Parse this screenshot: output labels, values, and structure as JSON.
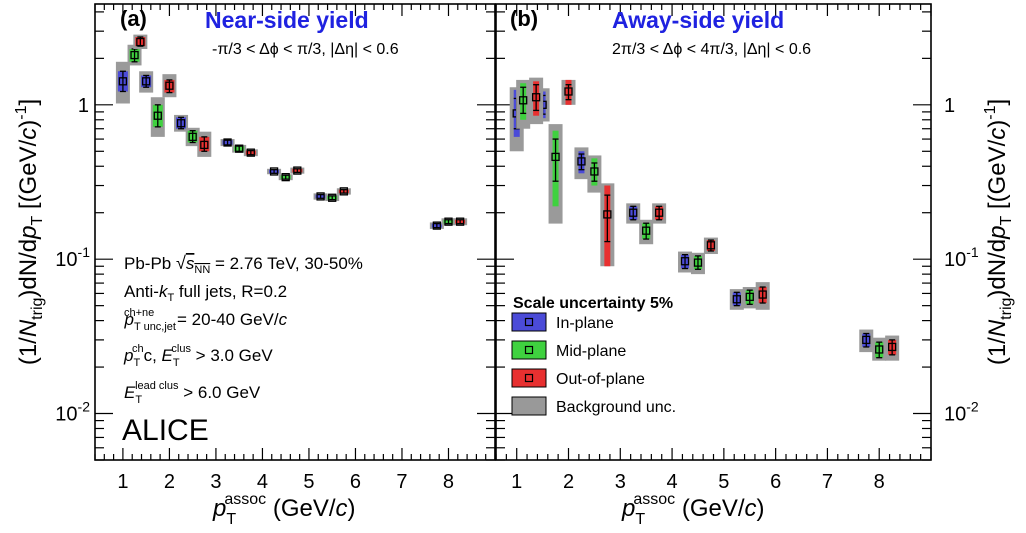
{
  "chart_data": [
    {
      "type": "scatter",
      "panel_label": "(a)",
      "title": "Near-side yield",
      "subtitle": "-π/3 < Δφ < π/3, |Δη| < 0.6",
      "xlabel": "p_T^assoc (GeV/c)",
      "ylabel": "(1/N_trig)dN/dp_T [(GeV/c)^-1]",
      "xlim": [
        0.4,
        9.0
      ],
      "ylim": [
        0.005,
        4.5
      ],
      "yscale": "log",
      "x_ticks": [
        "1",
        "2",
        "3",
        "4",
        "5",
        "6",
        "7",
        "8"
      ],
      "y_ticks": [
        "10^-2",
        "10^-1",
        "1"
      ],
      "annotations": [
        "Pb-Pb √s_NN = 2.76 TeV, 30-50%",
        "Anti-k_T full jets, R=0.2",
        "p_T unc,jet^ch+ne = 20-40 GeV/c",
        "p_T^ch c, E_T^clus > 3.0 GeV",
        "E_T^lead clus > 6.0 GeV",
        "ALICE"
      ],
      "series": [
        {
          "name": "In-plane",
          "color": "#4b4bd8",
          "points": [
            {
              "x": 1.0,
              "y": 1.42,
              "err": [
                1.22,
                1.65
              ],
              "bkg": [
                1.02,
                1.9
              ]
            },
            {
              "x": 1.5,
              "y": 1.42,
              "err": [
                1.3,
                1.55
              ],
              "bkg": [
                1.2,
                1.65
              ]
            },
            {
              "x": 2.25,
              "y": 0.76,
              "err": [
                0.7,
                0.83
              ],
              "bkg": [
                0.67,
                0.86
              ]
            },
            {
              "x": 3.25,
              "y": 0.57,
              "err": [
                0.55,
                0.59
              ],
              "bkg": [
                0.54,
                0.6
              ]
            },
            {
              "x": 4.25,
              "y": 0.37,
              "err": [
                0.36,
                0.38
              ],
              "bkg": [
                0.355,
                0.385
              ]
            },
            {
              "x": 5.25,
              "y": 0.255,
              "err": [
                0.248,
                0.262
              ],
              "bkg": [
                0.243,
                0.267
              ]
            },
            {
              "x": 7.75,
              "y": 0.165,
              "err": [
                0.16,
                0.17
              ],
              "bkg": [
                0.157,
                0.173
              ]
            }
          ]
        },
        {
          "name": "Mid-plane",
          "color": "#3fd13f",
          "points": [
            {
              "x": 1.25,
              "y": 2.1,
              "err": [
                1.9,
                2.3
              ],
              "bkg": [
                1.8,
                2.45
              ]
            },
            {
              "x": 1.75,
              "y": 0.85,
              "err": [
                0.72,
                1.0
              ],
              "bkg": [
                0.62,
                1.12
              ]
            },
            {
              "x": 2.5,
              "y": 0.62,
              "err": [
                0.57,
                0.68
              ],
              "bkg": [
                0.54,
                0.71
              ]
            },
            {
              "x": 3.5,
              "y": 0.52,
              "err": [
                0.5,
                0.54
              ],
              "bkg": [
                0.49,
                0.55
              ]
            },
            {
              "x": 4.5,
              "y": 0.34,
              "err": [
                0.33,
                0.35
              ],
              "bkg": [
                0.325,
                0.355
              ]
            },
            {
              "x": 5.5,
              "y": 0.25,
              "err": [
                0.243,
                0.257
              ],
              "bkg": [
                0.238,
                0.262
              ]
            },
            {
              "x": 8.0,
              "y": 0.175,
              "err": [
                0.17,
                0.18
              ],
              "bkg": [
                0.166,
                0.184
              ]
            }
          ]
        },
        {
          "name": "Out-of-plane",
          "color": "#e83030",
          "points": [
            {
              "x": 1.375,
              "y": 2.55,
              "err": [
                2.4,
                2.75
              ],
              "bkg": [
                2.3,
                2.85
              ]
            },
            {
              "x": 2.0,
              "y": 1.33,
              "err": [
                1.2,
                1.45
              ],
              "bkg": [
                1.12,
                1.58
              ]
            },
            {
              "x": 2.75,
              "y": 0.55,
              "err": [
                0.5,
                0.62
              ],
              "bkg": [
                0.46,
                0.67
              ]
            },
            {
              "x": 3.75,
              "y": 0.49,
              "err": [
                0.475,
                0.505
              ],
              "bkg": [
                0.465,
                0.515
              ]
            },
            {
              "x": 4.75,
              "y": 0.375,
              "err": [
                0.365,
                0.385
              ],
              "bkg": [
                0.358,
                0.392
              ]
            },
            {
              "x": 5.75,
              "y": 0.275,
              "err": [
                0.268,
                0.282
              ],
              "bkg": [
                0.262,
                0.288
              ]
            },
            {
              "x": 8.25,
              "y": 0.175,
              "err": [
                0.17,
                0.18
              ],
              "bkg": [
                0.166,
                0.184
              ]
            }
          ]
        }
      ]
    },
    {
      "type": "scatter",
      "panel_label": "(b)",
      "title": "Away-side yield",
      "subtitle": "2π/3 < Δφ < 4π/3, |Δη| < 0.6",
      "xlabel": "p_T^assoc (GeV/c)",
      "ylabel": "(1/N_trig)dN/dp_T [(GeV/c)^-1]",
      "xlim": [
        0.6,
        9.0
      ],
      "ylim": [
        0.005,
        4.5
      ],
      "yscale": "log",
      "x_ticks": [
        "1",
        "2",
        "3",
        "4",
        "5",
        "6",
        "7",
        "8"
      ],
      "y_ticks": [
        "10^-2",
        "10^-1",
        "1"
      ],
      "legend": {
        "title": "Scale uncertainty 5%",
        "placement": "bottom-left",
        "entries": [
          {
            "label": "In-plane",
            "color": "#4b4bd8"
          },
          {
            "label": "Mid-plane",
            "color": "#3fd13f"
          },
          {
            "label": "Out-of-plane",
            "color": "#e83030"
          },
          {
            "label": "Background unc.",
            "color": "#999999"
          }
        ]
      },
      "series": [
        {
          "name": "In-plane",
          "color": "#4b4bd8",
          "points": [
            {
              "x": 1.0,
              "y": 0.88,
              "err": [
                0.7,
                1.1
              ],
              "bkg": [
                0.5,
                1.3
              ],
              "sys": [
                0.62,
                1.25
              ]
            },
            {
              "x": 1.5,
              "y": 1.0,
              "err": [
                0.87,
                1.15
              ],
              "bkg": [
                0.78,
                1.28
              ],
              "sys": [
                0.82,
                1.22
              ]
            },
            {
              "x": 2.25,
              "y": 0.43,
              "err": [
                0.38,
                0.48
              ],
              "bkg": [
                0.33,
                0.53
              ],
              "sys": [
                0.36,
                0.5
              ]
            },
            {
              "x": 3.25,
              "y": 0.2,
              "err": [
                0.18,
                0.22
              ],
              "bkg": [
                0.17,
                0.23
              ]
            },
            {
              "x": 4.25,
              "y": 0.097,
              "err": [
                0.087,
                0.107
              ],
              "bkg": [
                0.082,
                0.112
              ]
            },
            {
              "x": 5.25,
              "y": 0.055,
              "err": [
                0.05,
                0.061
              ],
              "bkg": [
                0.047,
                0.064
              ]
            },
            {
              "x": 7.75,
              "y": 0.03,
              "err": [
                0.027,
                0.033
              ],
              "bkg": [
                0.025,
                0.035
              ]
            }
          ]
        },
        {
          "name": "Mid-plane",
          "color": "#3fd13f",
          "points": [
            {
              "x": 1.125,
              "y": 1.07,
              "err": [
                0.88,
                1.3
              ],
              "bkg": [
                0.7,
                1.45
              ],
              "sys": [
                0.8,
                1.38
              ]
            },
            {
              "x": 1.75,
              "y": 0.46,
              "err": [
                0.32,
                0.6
              ],
              "bkg": [
                0.17,
                0.75
              ],
              "sys": [
                0.22,
                0.68
              ]
            },
            {
              "x": 2.5,
              "y": 0.37,
              "err": [
                0.32,
                0.42
              ],
              "bkg": [
                0.27,
                0.47
              ],
              "sys": [
                0.3,
                0.45
              ]
            },
            {
              "x": 3.5,
              "y": 0.153,
              "err": [
                0.135,
                0.171
              ],
              "bkg": [
                0.125,
                0.18
              ]
            },
            {
              "x": 4.5,
              "y": 0.095,
              "err": [
                0.086,
                0.105
              ],
              "bkg": [
                0.08,
                0.11
              ]
            },
            {
              "x": 5.5,
              "y": 0.057,
              "err": [
                0.051,
                0.063
              ],
              "bkg": [
                0.048,
                0.066
              ]
            },
            {
              "x": 8.0,
              "y": 0.026,
              "err": [
                0.023,
                0.029
              ],
              "bkg": [
                0.022,
                0.031
              ]
            }
          ]
        },
        {
          "name": "Out-of-plane",
          "color": "#e83030",
          "points": [
            {
              "x": 1.375,
              "y": 1.12,
              "err": [
                0.92,
                1.35
              ],
              "bkg": [
                0.75,
                1.5
              ],
              "sys": [
                0.85,
                1.42
              ]
            },
            {
              "x": 2.0,
              "y": 1.22,
              "err": [
                1.08,
                1.35
              ],
              "bkg": [
                1.0,
                1.45
              ],
              "sys": [
                1.0,
                1.45
              ]
            },
            {
              "x": 2.75,
              "y": 0.195,
              "err": [
                0.13,
                0.26
              ],
              "bkg": [
                0.09,
                0.31
              ],
              "sys": [
                0.09,
                0.3
              ]
            },
            {
              "x": 3.75,
              "y": 0.2,
              "err": [
                0.18,
                0.22
              ],
              "bkg": [
                0.17,
                0.23
              ]
            },
            {
              "x": 4.75,
              "y": 0.123,
              "err": [
                0.113,
                0.133
              ],
              "bkg": [
                0.108,
                0.138
              ]
            },
            {
              "x": 5.75,
              "y": 0.059,
              "err": [
                0.052,
                0.066
              ],
              "bkg": [
                0.047,
                0.071
              ]
            },
            {
              "x": 8.25,
              "y": 0.027,
              "err": [
                0.024,
                0.03
              ],
              "bkg": [
                0.022,
                0.032
              ]
            }
          ]
        }
      ]
    }
  ]
}
